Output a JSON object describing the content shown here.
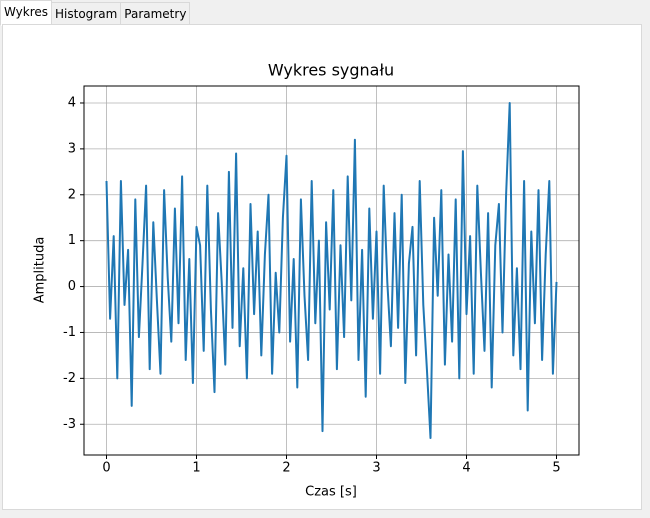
{
  "tabs": [
    "Wykres",
    "Histogram",
    "Parametry"
  ],
  "chart_data": {
    "type": "line",
    "title": "Wykres sygnału",
    "xlabel": "Czas [s]",
    "ylabel": "Amplituda",
    "color": "#1f77b4",
    "grid": true,
    "xlim": [
      -0.25,
      5.25
    ],
    "ylim": [
      -3.67,
      4.37
    ],
    "xticks": [
      0,
      1,
      2,
      3,
      4,
      5
    ],
    "yticks": [
      -3,
      -2,
      -1,
      0,
      1,
      2,
      3,
      4
    ],
    "x": [
      0,
      0.04,
      0.08,
      0.12,
      0.16,
      0.2,
      0.24,
      0.28,
      0.32,
      0.36,
      0.4,
      0.44,
      0.48,
      0.52,
      0.56,
      0.6,
      0.64,
      0.68,
      0.72,
      0.76,
      0.8,
      0.84,
      0.88,
      0.92,
      0.96,
      1.0,
      1.04,
      1.08,
      1.12,
      1.16,
      1.2,
      1.24,
      1.28,
      1.32,
      1.36,
      1.4,
      1.44,
      1.48,
      1.52,
      1.56,
      1.6,
      1.64,
      1.68,
      1.72,
      1.76,
      1.8,
      1.84,
      1.88,
      1.92,
      1.96,
      2.0,
      2.04,
      2.08,
      2.12,
      2.16,
      2.2,
      2.24,
      2.28,
      2.32,
      2.36,
      2.4,
      2.44,
      2.48,
      2.52,
      2.56,
      2.6,
      2.64,
      2.68,
      2.72,
      2.76,
      2.8,
      2.84,
      2.88,
      2.92,
      2.96,
      3.0,
      3.04,
      3.08,
      3.12,
      3.16,
      3.2,
      3.24,
      3.28,
      3.32,
      3.36,
      3.4,
      3.44,
      3.48,
      3.52,
      3.56,
      3.6,
      3.64,
      3.68,
      3.72,
      3.76,
      3.8,
      3.84,
      3.88,
      3.92,
      3.96,
      4.0,
      4.04,
      4.08,
      4.12,
      4.16,
      4.2,
      4.24,
      4.28,
      4.32,
      4.36,
      4.4,
      4.44,
      4.48,
      4.52,
      4.56,
      4.6,
      4.64,
      4.68,
      4.72,
      4.76,
      4.8,
      4.84,
      4.88,
      4.92,
      4.96,
      5.0
    ],
    "values": [
      2.3,
      -0.7,
      1.1,
      -2.0,
      2.3,
      -0.4,
      0.8,
      -2.6,
      1.9,
      -1.1,
      0.5,
      2.2,
      -1.8,
      1.4,
      -0.3,
      -1.9,
      2.1,
      0.2,
      -1.2,
      1.7,
      -0.8,
      2.4,
      -1.6,
      0.6,
      -2.1,
      1.3,
      0.9,
      -1.4,
      2.2,
      -0.5,
      -2.3,
      1.6,
      0.1,
      -1.7,
      2.5,
      -0.9,
      2.9,
      -1.3,
      0.4,
      -2.0,
      1.8,
      -0.6,
      1.2,
      -1.5,
      0.7,
      2.0,
      -1.9,
      0.3,
      -1.0,
      1.5,
      2.85,
      -1.2,
      0.6,
      -2.2,
      1.9,
      -0.2,
      -1.6,
      2.3,
      -0.8,
      1.0,
      -3.15,
      1.4,
      -0.5,
      2.1,
      -1.8,
      0.9,
      -1.1,
      2.4,
      -0.3,
      3.2,
      -1.6,
      0.8,
      -2.4,
      1.7,
      -0.7,
      1.2,
      -1.9,
      2.2,
      0.1,
      -1.3,
      1.6,
      -0.9,
      2.0,
      -2.1,
      0.5,
      1.3,
      -1.5,
      2.3,
      -0.4,
      -1.8,
      -3.3,
      1.5,
      -0.2,
      2.1,
      -1.7,
      0.7,
      -1.2,
      1.9,
      -2.0,
      2.95,
      -0.6,
      1.1,
      -1.9,
      2.2,
      0.3,
      -1.4,
      1.6,
      -2.2,
      0.9,
      1.8,
      -1.0,
      2.0,
      4.0,
      -1.5,
      0.4,
      -1.8,
      2.3,
      -2.7,
      1.2,
      -0.8,
      2.1,
      -1.6,
      0.7,
      2.3,
      -1.9,
      0.1
    ]
  }
}
